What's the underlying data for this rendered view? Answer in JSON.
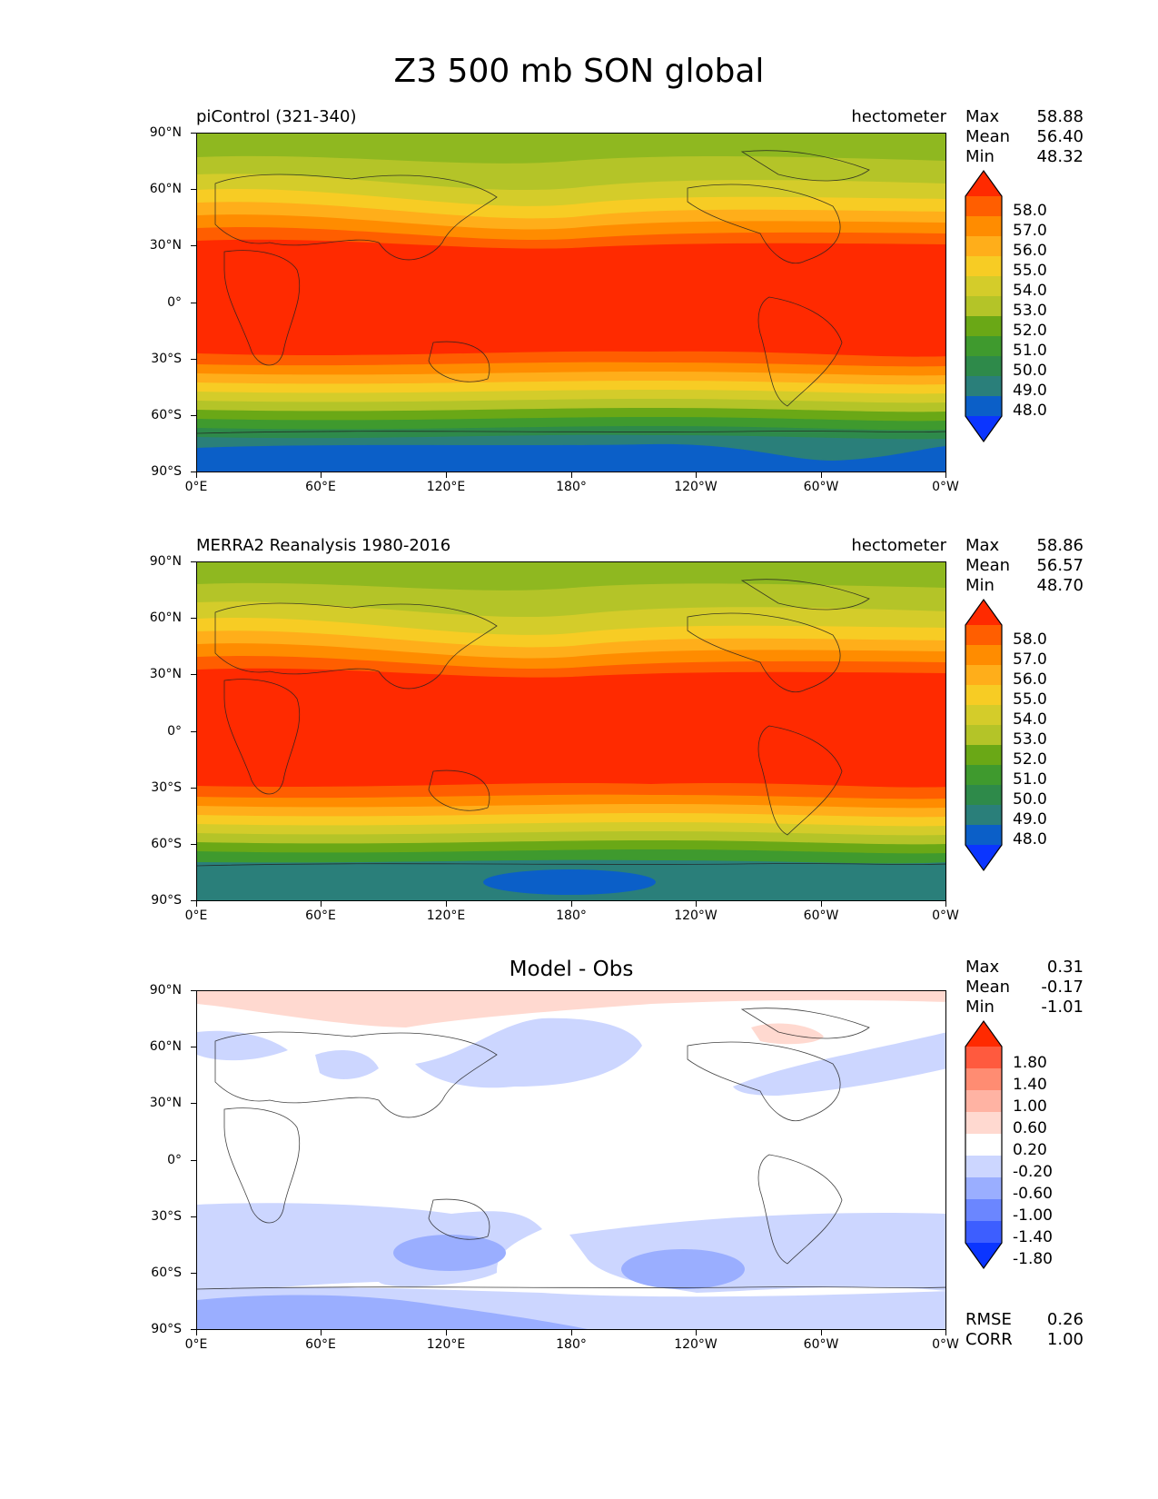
{
  "title": "Z3 500 mb SON global",
  "y_ticks": [
    "90°N",
    "60°N",
    "30°N",
    "0°",
    "30°S",
    "60°S",
    "90°S"
  ],
  "x_ticks": [
    "0°E",
    "60°E",
    "120°E",
    "180°",
    "120°W",
    "60°W",
    "0°W"
  ],
  "panels": [
    {
      "title_left": "piControl (321-340)",
      "title_right": "hectometer",
      "title_center": "",
      "stats": [
        {
          "label": "Max",
          "value": "58.88"
        },
        {
          "label": "Mean",
          "value": "56.40"
        },
        {
          "label": "Min",
          "value": "48.32"
        }
      ],
      "colorbar_labels": [
        "58.0",
        "57.0",
        "56.0",
        "55.0",
        "54.0",
        "53.0",
        "52.0",
        "51.0",
        "50.0",
        "49.0",
        "48.0"
      ],
      "colorbar_colors": [
        "#ff2a00",
        "#ff5e00",
        "#ff8c00",
        "#ffae1a",
        "#f7cc24",
        "#d4cc2a",
        "#b4c428",
        "#6aa816",
        "#3f9a2e",
        "#2e8a4a",
        "#2a7f7a",
        "#0b5fc8",
        "#0b35ff"
      ],
      "extra": []
    },
    {
      "title_left": "MERRA2 Reanalysis 1980-2016",
      "title_right": "hectometer",
      "title_center": "",
      "stats": [
        {
          "label": "Max",
          "value": "58.86"
        },
        {
          "label": "Mean",
          "value": "56.57"
        },
        {
          "label": "Min",
          "value": "48.70"
        }
      ],
      "colorbar_labels": [
        "58.0",
        "57.0",
        "56.0",
        "55.0",
        "54.0",
        "53.0",
        "52.0",
        "51.0",
        "50.0",
        "49.0",
        "48.0"
      ],
      "colorbar_colors": [
        "#ff2a00",
        "#ff5e00",
        "#ff8c00",
        "#ffae1a",
        "#f7cc24",
        "#d4cc2a",
        "#b4c428",
        "#6aa816",
        "#3f9a2e",
        "#2e8a4a",
        "#2a7f7a",
        "#0b5fc8",
        "#0b35ff"
      ],
      "extra": []
    },
    {
      "title_left": "",
      "title_right": "",
      "title_center": "Model - Obs",
      "stats": [
        {
          "label": "Max",
          "value": "0.31"
        },
        {
          "label": "Mean",
          "value": "-0.17"
        },
        {
          "label": "Min",
          "value": "-1.01"
        }
      ],
      "colorbar_labels": [
        "1.80",
        "1.40",
        "1.00",
        "0.60",
        "0.20",
        "-0.20",
        "-0.60",
        "-1.00",
        "-1.40",
        "-1.80"
      ],
      "colorbar_colors": [
        "#ff2a00",
        "#ff5a3e",
        "#ff8c72",
        "#ffb3a3",
        "#ffd9d0",
        "#ffffff",
        "#ccd6ff",
        "#9aaeff",
        "#6b86ff",
        "#3d5eff",
        "#0b35ff"
      ],
      "extra": [
        {
          "label": "RMSE",
          "value": "0.26"
        },
        {
          "label": "CORR",
          "value": "1.00"
        }
      ]
    }
  ]
}
